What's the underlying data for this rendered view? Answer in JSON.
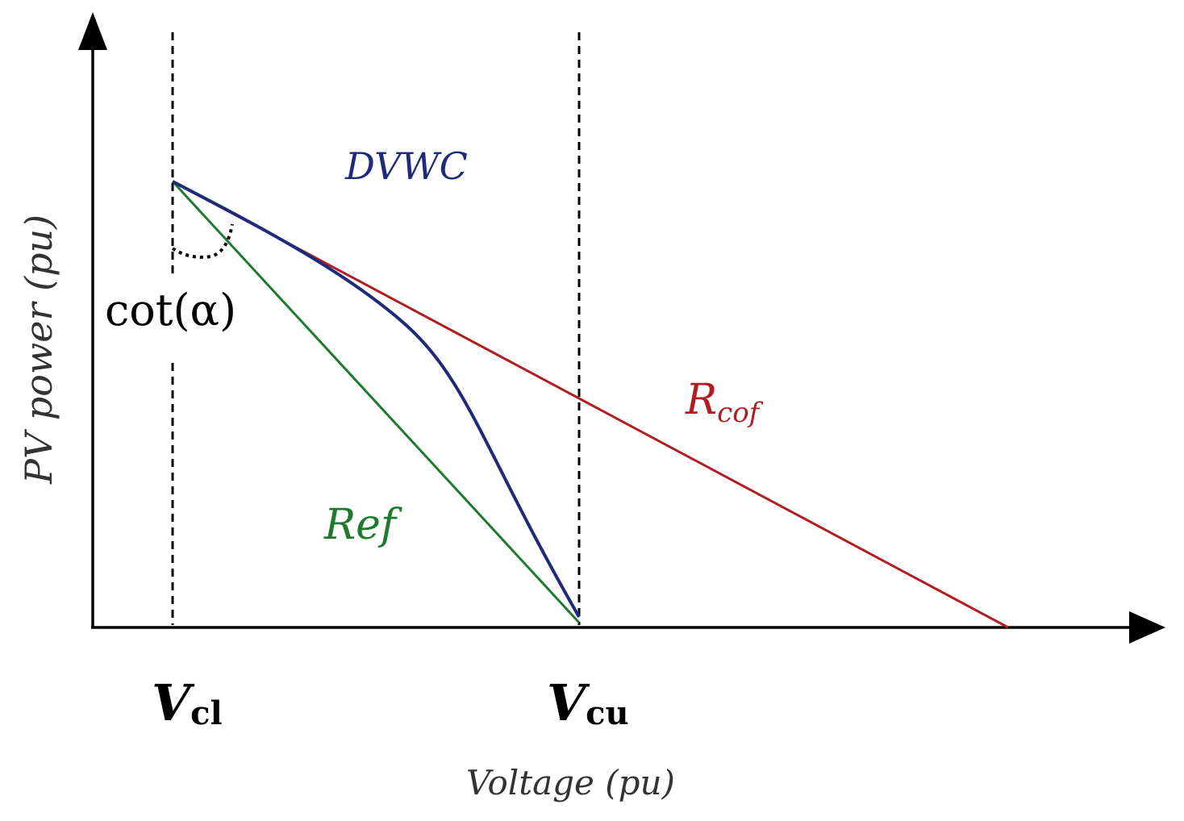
{
  "labels": {
    "y_axis": "PV power (pu)",
    "x_axis": "Voltage (pu)",
    "dvwc": "DVWC",
    "rcof_main": "R",
    "rcof_sub": "cof",
    "ref": "Ref",
    "angle": "cot(α)",
    "vcl_main": "V",
    "vcl_sub": "cl",
    "vcu_main": "V",
    "vcu_sub": "cu"
  },
  "colors": {
    "axis": "#000000",
    "dvwc": "#1f2a7a",
    "rcof": "#b01e23",
    "ref": "#1f7a2e",
    "dvwc_label": "#1f2a7a",
    "rcof_label": "#b01e23",
    "ref_label": "#1f7a2e"
  }
}
